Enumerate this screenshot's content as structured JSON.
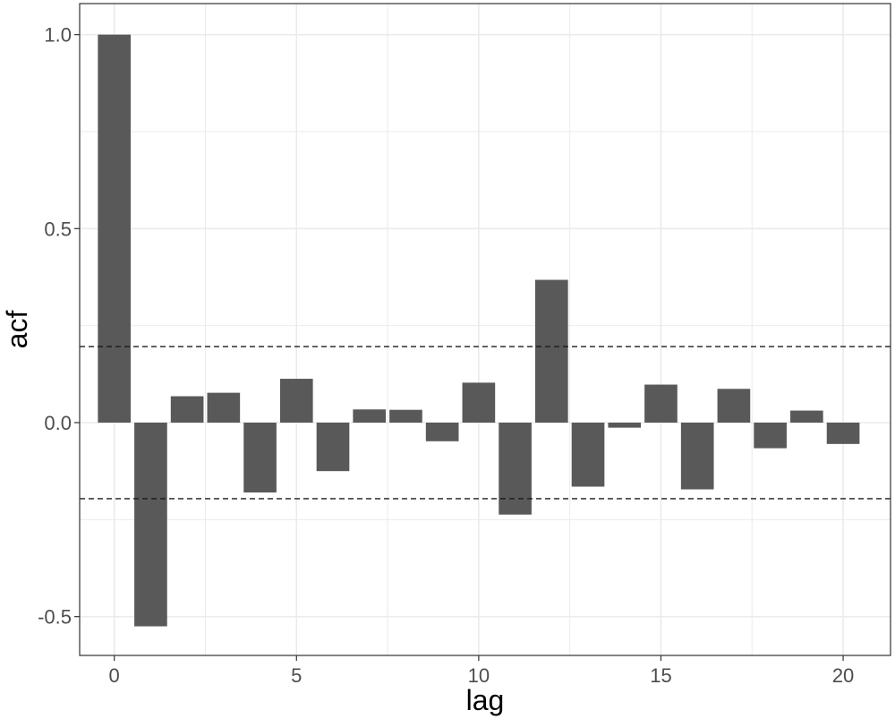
{
  "chart_data": {
    "type": "bar",
    "title": "",
    "xlabel": "lag",
    "ylabel": "acf",
    "x": [
      0,
      1,
      2,
      3,
      4,
      5,
      6,
      7,
      8,
      9,
      10,
      11,
      12,
      13,
      14,
      15,
      16,
      17,
      18,
      19,
      20
    ],
    "values": [
      1.0,
      -0.525,
      0.068,
      0.077,
      -0.18,
      0.113,
      -0.125,
      0.034,
      0.033,
      -0.048,
      0.103,
      -0.237,
      0.368,
      -0.165,
      -0.013,
      0.098,
      -0.172,
      0.087,
      -0.066,
      0.031,
      -0.055
    ],
    "xlim": [
      -0.95,
      21.3
    ],
    "ylim": [
      -0.6,
      1.08
    ],
    "x_ticks": [
      0,
      5,
      10,
      15,
      20
    ],
    "x_tick_labels": [
      "0",
      "5",
      "10",
      "15",
      "20"
    ],
    "y_ticks": [
      -0.5,
      0.0,
      0.5,
      1.0
    ],
    "y_tick_labels": [
      "-0.5",
      "0.0",
      "0.5",
      "1.0"
    ],
    "confidence_bounds": [
      0.196,
      -0.196
    ],
    "grid": true,
    "legend": "none",
    "colors": {
      "bar": "#595959",
      "grid": "#ebebeb",
      "panel_border": "#333333",
      "bound_line": "#1a1a1a",
      "tick_text": "#4d4d4d",
      "axis_title": "#000000"
    }
  }
}
